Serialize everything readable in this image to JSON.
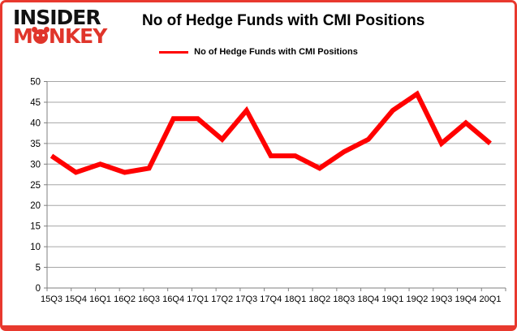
{
  "frame": {
    "border_color": "#e8392e",
    "background": "#ffffff"
  },
  "logo": {
    "line1": "INSIDER",
    "line2_parts": [
      "M",
      "NKEY"
    ],
    "line1_color": "#121212",
    "line2_color": "#e0352b"
  },
  "header": {
    "title": "No of Hedge Funds with CMI Positions"
  },
  "legend": {
    "label": "No of Hedge Funds with CMI Positions",
    "line_color": "#ff0000"
  },
  "chart_data": {
    "type": "line",
    "title": "No of Hedge Funds with CMI Positions",
    "categories": [
      "15Q3",
      "15Q4",
      "16Q1",
      "16Q2",
      "16Q3",
      "16Q4",
      "17Q1",
      "17Q2",
      "17Q3",
      "17Q4",
      "18Q1",
      "18Q2",
      "18Q3",
      "18Q4",
      "19Q1",
      "19Q2",
      "19Q3",
      "19Q4",
      "20Q1"
    ],
    "series": [
      {
        "name": "No of Hedge Funds with CMI Positions",
        "color": "#ff0000",
        "values": [
          32,
          28,
          30,
          28,
          29,
          41,
          41,
          36,
          43,
          32,
          32,
          29,
          33,
          36,
          43,
          47,
          35,
          40,
          35
        ]
      }
    ],
    "xlabel": "",
    "ylabel": "",
    "ylim": [
      0,
      50
    ],
    "yticks": [
      0,
      5,
      10,
      15,
      20,
      25,
      30,
      35,
      40,
      45,
      50
    ],
    "grid": true,
    "gridline_color": "#a6a6a6",
    "axis_color": "#7f7f7f",
    "tick_label_color": "#000000",
    "legend_position": "top-center"
  }
}
